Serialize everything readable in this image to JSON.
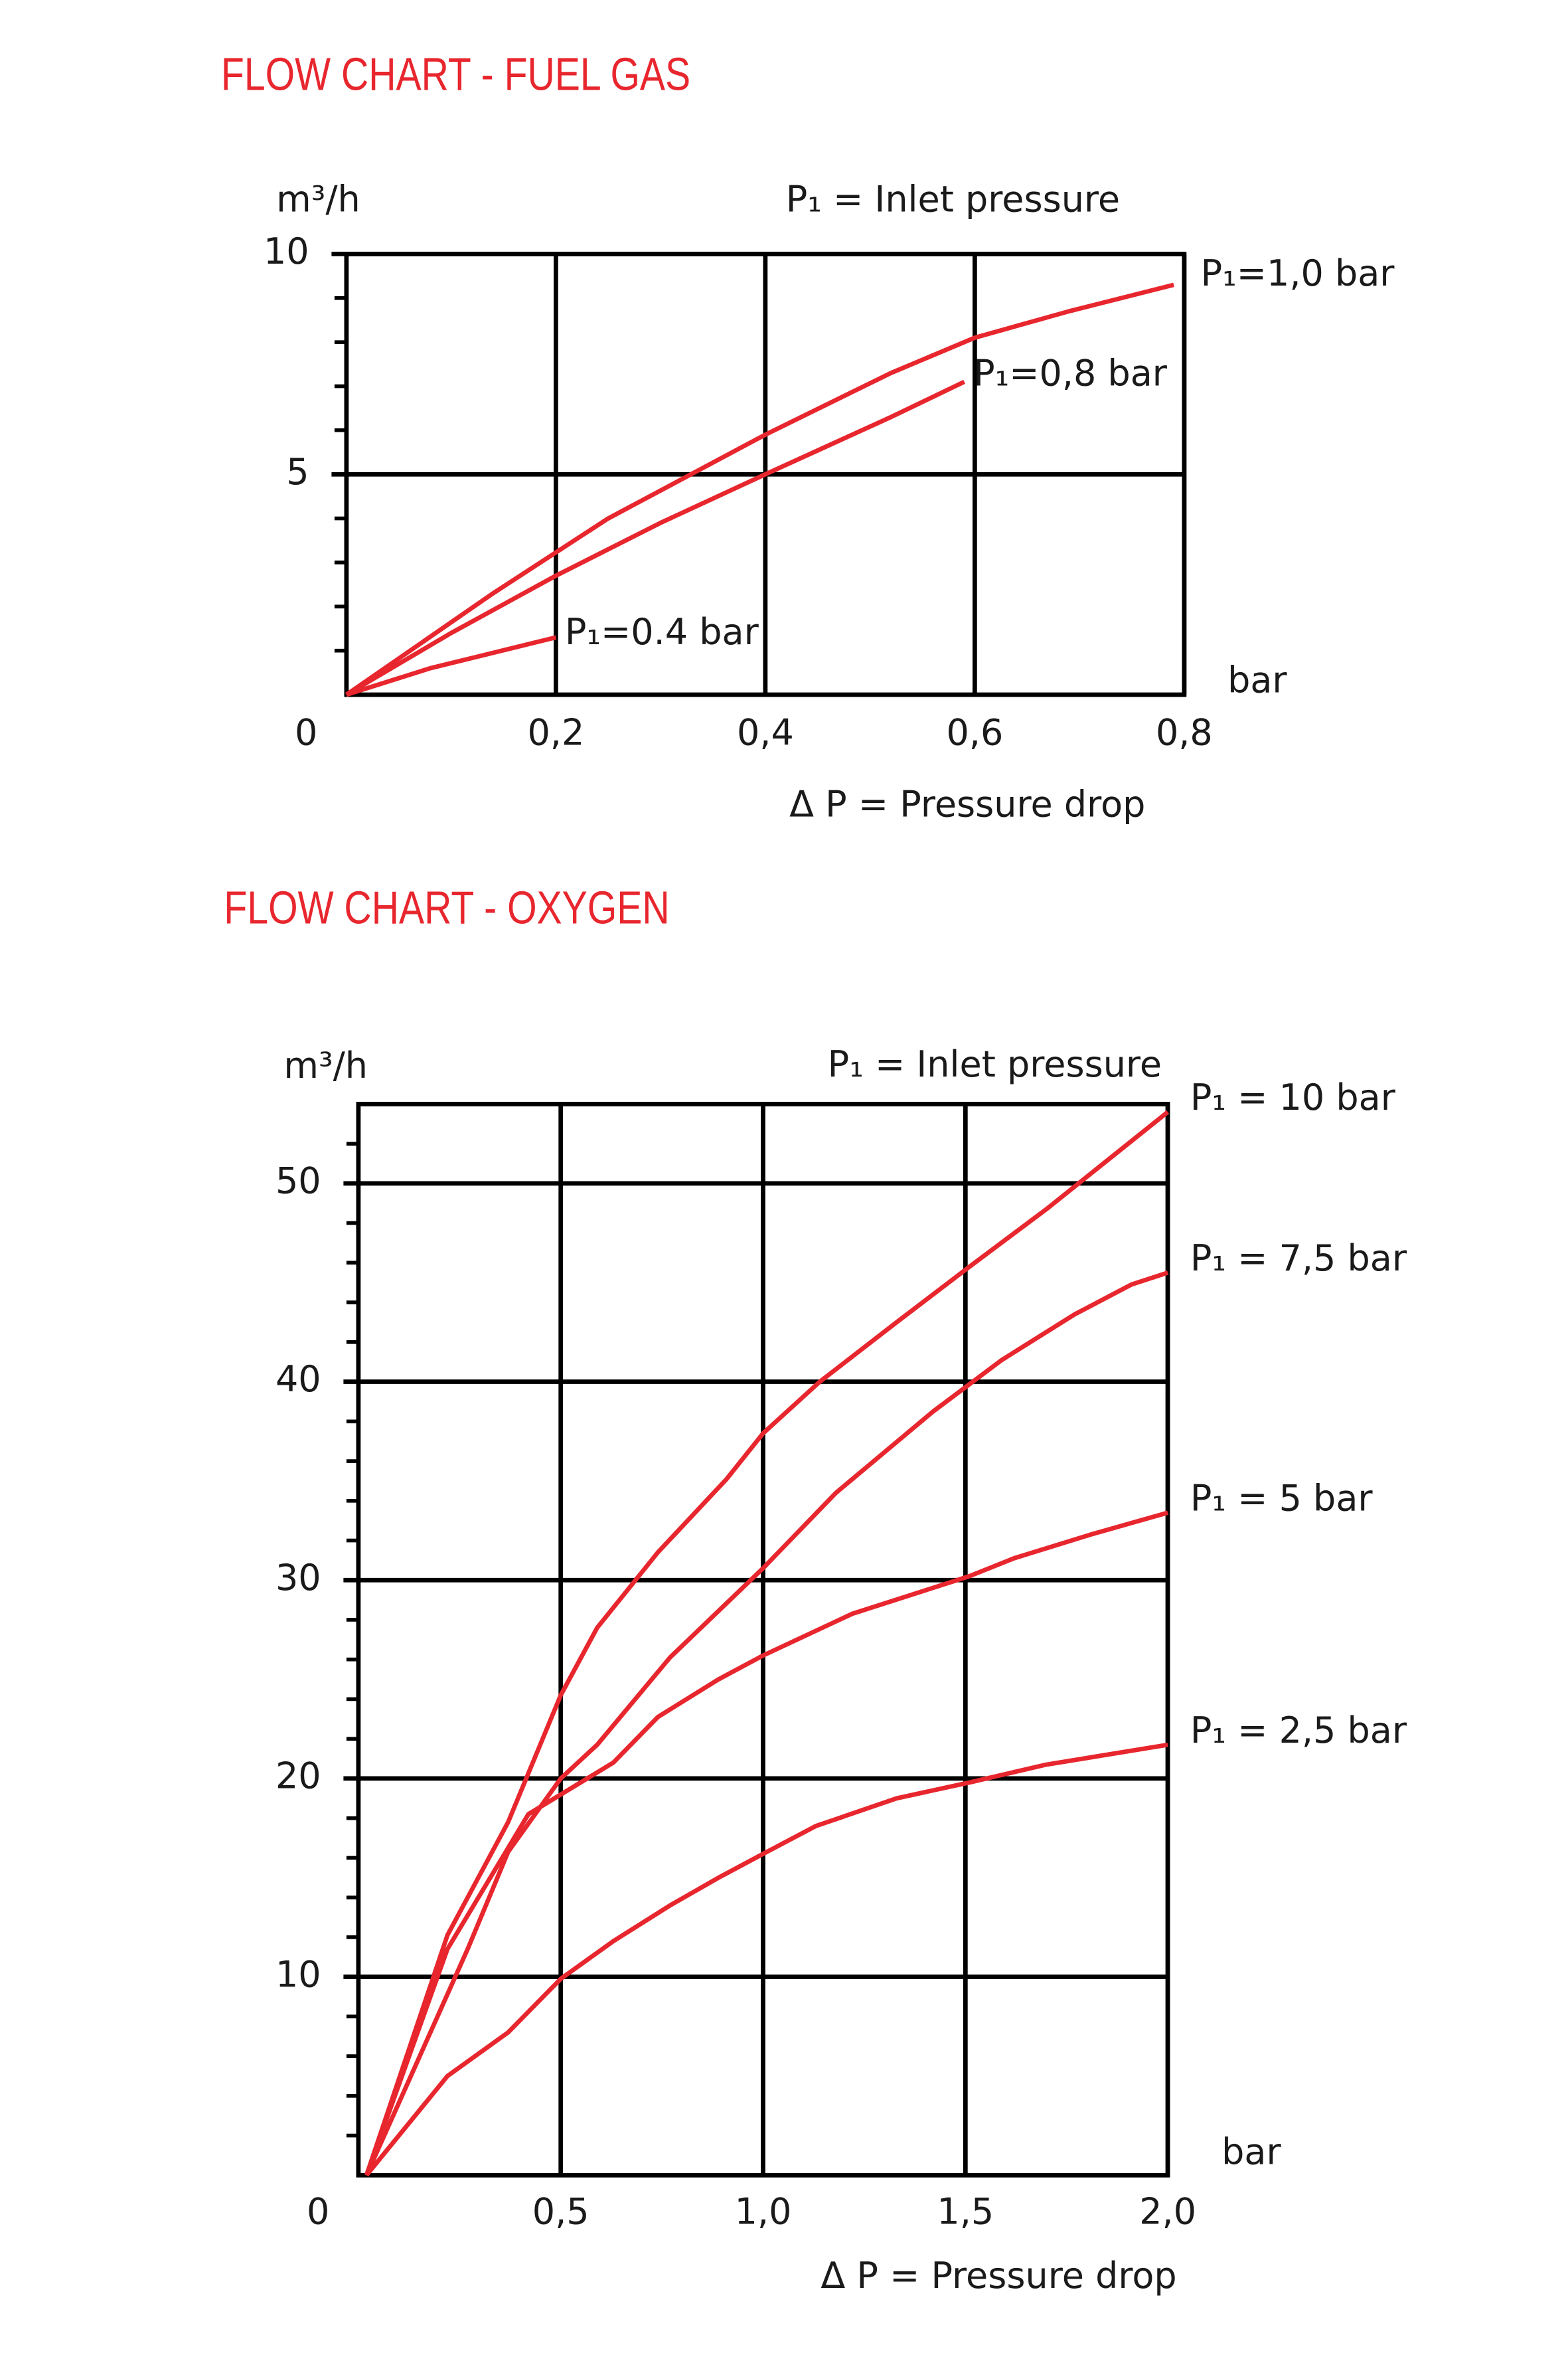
{
  "chart_data": [
    {
      "type": "line",
      "title": "FLOW CHART - FUEL GAS",
      "ylabel": "m³/h",
      "annotation": "P₁ = Inlet pressure",
      "xlabel": "Δ P = Pressure drop",
      "x_unit": "bar",
      "xlim": [
        0,
        0.8
      ],
      "ylim": [
        0,
        10
      ],
      "xticks": [
        0,
        {
          "value": 0.2,
          "label": "0,2"
        },
        {
          "value": 0.4,
          "label": "0,4"
        },
        {
          "value": 0.6,
          "label": "0,6"
        },
        {
          "value": 0.8,
          "label": "0,8"
        }
      ],
      "yticks": [
        5,
        10
      ],
      "grid": true,
      "series": [
        {
          "name": "P₁=1,0 bar",
          "color": "#e8262e",
          "x": [
            0,
            0.14,
            0.25,
            0.4,
            0.52,
            0.6,
            0.69,
            0.79
          ],
          "values": [
            0,
            2.3,
            4.0,
            5.9,
            7.3,
            8.1,
            8.7,
            9.3
          ]
        },
        {
          "name": "P₁=0,8 bar",
          "color": "#e8262e",
          "x": [
            0,
            0.1,
            0.2,
            0.3,
            0.4,
            0.52,
            0.59
          ],
          "values": [
            0,
            1.4,
            2.7,
            3.9,
            5.0,
            6.3,
            7.1
          ]
        },
        {
          "name": "P₁=0.4 bar",
          "color": "#e8262e",
          "x": [
            0,
            0.08,
            0.14,
            0.2
          ],
          "values": [
            0,
            0.6,
            0.95,
            1.3
          ]
        }
      ]
    },
    {
      "type": "line",
      "title": "FLOW CHART - OXYGEN",
      "ylabel": "m³/h",
      "annotation": "P₁ = Inlet pressure",
      "xlabel": "Δ P = Pressure drop",
      "x_unit": "bar",
      "xlim": [
        0,
        2.0
      ],
      "ylim": [
        0,
        54
      ],
      "xticks": [
        0,
        {
          "value": 0.5,
          "label": "0,5"
        },
        {
          "value": 1.0,
          "label": "1,0"
        },
        {
          "value": 1.5,
          "label": "1,5"
        },
        {
          "value": 2.0,
          "label": "2,0"
        }
      ],
      "yticks": [
        10,
        20,
        30,
        40,
        50
      ],
      "grid": true,
      "series": [
        {
          "name": "P₁ = 10 bar",
          "color": "#e8262e",
          "x": [
            0.02,
            0.22,
            0.37,
            0.5,
            0.59,
            0.74,
            0.91,
            1.0,
            1.14,
            1.33,
            1.51,
            1.7,
            2.0
          ],
          "values": [
            0,
            12.1,
            17.8,
            24.2,
            27.6,
            31.4,
            35.1,
            37.4,
            40,
            43,
            45.8,
            48.7,
            53.6
          ]
        },
        {
          "name": "P₁ = 7,5 bar",
          "color": "#e8262e",
          "x": [
            0.02,
            0.27,
            0.37,
            0.5,
            0.59,
            0.77,
            1.0,
            1.18,
            1.42,
            1.59,
            1.77,
            1.91,
            2.0
          ],
          "values": [
            0,
            11.4,
            16.3,
            20,
            21.7,
            26.1,
            30.6,
            34.4,
            38.5,
            41.1,
            43.4,
            44.9,
            45.5
          ]
        },
        {
          "name": "P₁ = 5 bar",
          "color": "#e8262e",
          "x": [
            0.02,
            0.22,
            0.42,
            0.63,
            0.74,
            0.89,
            1.0,
            1.22,
            1.51,
            1.62,
            1.81,
            2.0
          ],
          "values": [
            0,
            11.4,
            18.2,
            20.8,
            23.1,
            25,
            26.2,
            28.3,
            30.2,
            31.1,
            32.3,
            33.4
          ]
        },
        {
          "name": "P₁ = 2,5 bar",
          "color": "#e8262e",
          "x": [
            0.02,
            0.22,
            0.37,
            0.5,
            0.63,
            0.77,
            0.89,
            1.0,
            1.13,
            1.33,
            1.51,
            1.7,
            2.0
          ],
          "values": [
            0,
            5,
            7.2,
            9.9,
            11.8,
            13.6,
            15,
            16.2,
            17.6,
            19,
            19.8,
            20.7,
            21.7
          ]
        }
      ]
    }
  ]
}
